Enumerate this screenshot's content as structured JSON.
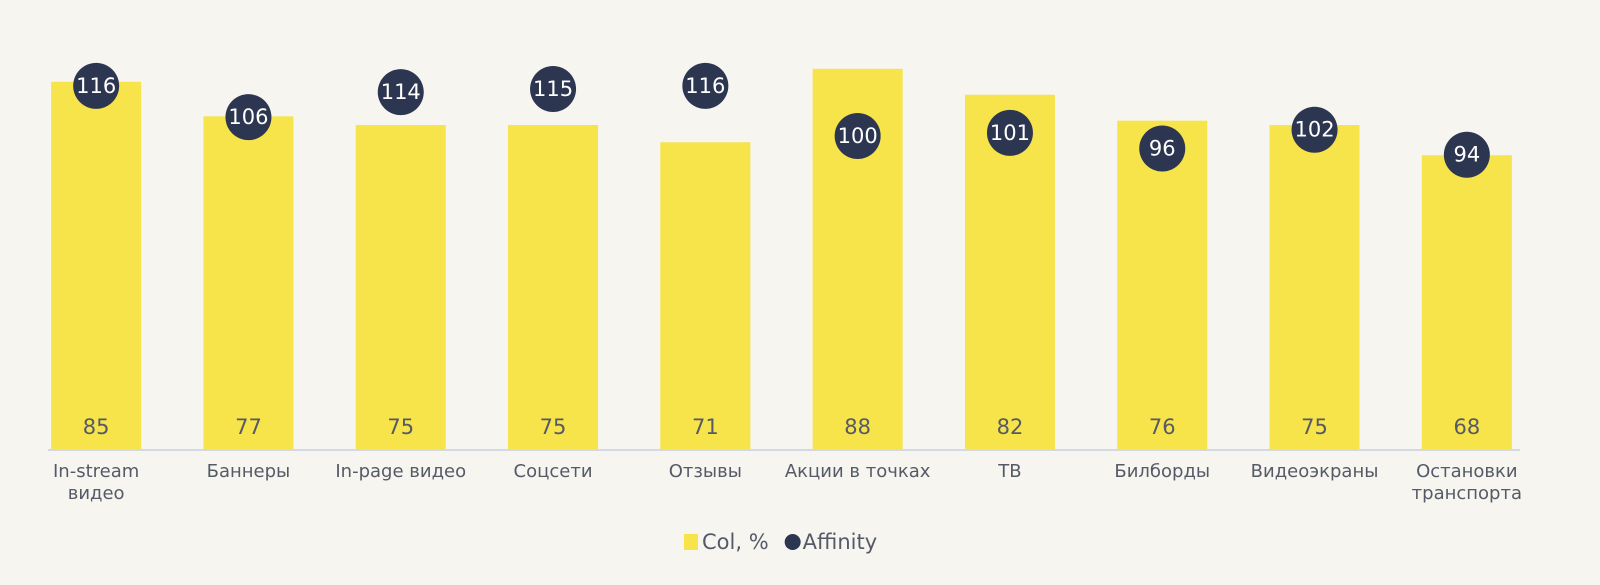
{
  "chart_data": {
    "type": "bar",
    "categories": [
      "In-stream\nвидео",
      "Баннеры",
      "In-page видео",
      "Соцсети",
      "Отзывы",
      "Акции в точках",
      "ТВ",
      "Билборды",
      "Видеоэкраны",
      "Остановки\nтранспорта"
    ],
    "series": [
      {
        "name": "Col, %",
        "type": "bar",
        "color": "#f7e34a",
        "values": [
          85,
          77,
          75,
          75,
          71,
          88,
          82,
          76,
          75,
          68
        ]
      },
      {
        "name": "Affinity",
        "type": "scatter",
        "axis": "y2",
        "color": "#2d3650",
        "values": [
          116,
          106,
          114,
          115,
          116,
          100,
          101,
          96,
          102,
          94
        ]
      }
    ],
    "ylim": [
      0,
      100
    ],
    "y2lim": [
      0,
      138
    ],
    "legend": "bottom"
  }
}
